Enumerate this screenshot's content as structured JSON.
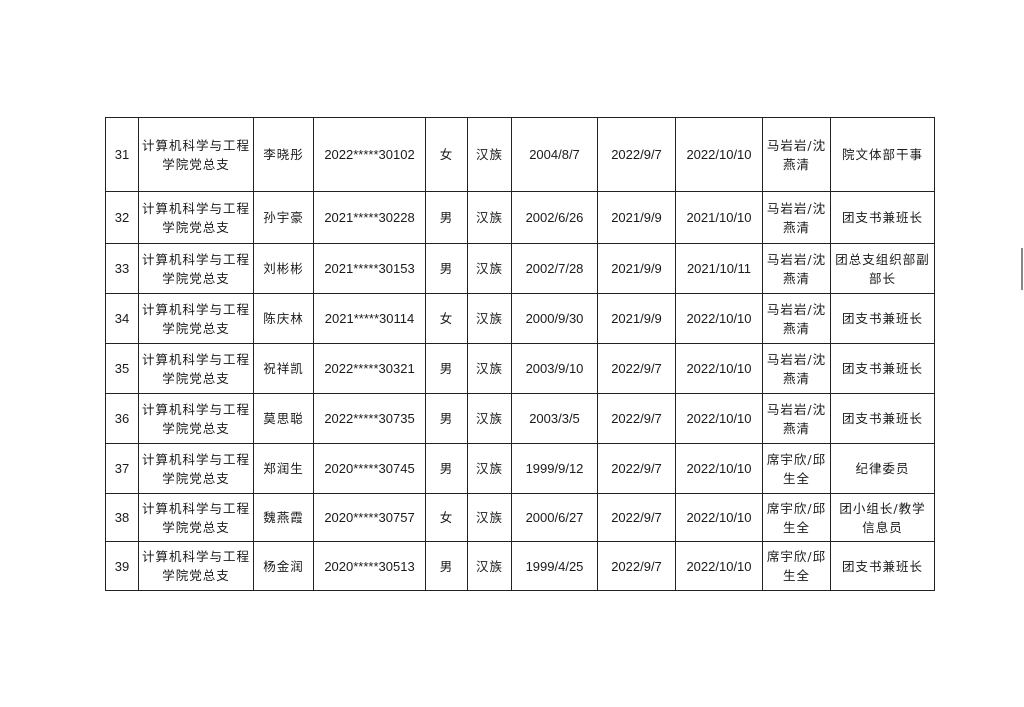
{
  "rows": [
    {
      "no": "31",
      "unit": "计算机科学与工程学院党总支",
      "name": "李晓彤",
      "id": "2022*****30102",
      "gender": "女",
      "ethnicity": "汉族",
      "birth": "2004/8/7",
      "date1": "2022/9/7",
      "date2": "2022/10/10",
      "contacts": "马岩岩/沈燕清",
      "position": "院文体部干事"
    },
    {
      "no": "32",
      "unit": "计算机科学与工程学院党总支",
      "name": "孙宇豪",
      "id": "2021*****30228",
      "gender": "男",
      "ethnicity": "汉族",
      "birth": "2002/6/26",
      "date1": "2021/9/9",
      "date2": "2021/10/10",
      "contacts": "马岩岩/沈燕清",
      "position": "团支书兼班长"
    },
    {
      "no": "33",
      "unit": "计算机科学与工程学院党总支",
      "name": "刘彬彬",
      "id": "2021*****30153",
      "gender": "男",
      "ethnicity": "汉族",
      "birth": "2002/7/28",
      "date1": "2021/9/9",
      "date2": "2021/10/11",
      "contacts": "马岩岩/沈燕清",
      "position": "团总支组织部副部长"
    },
    {
      "no": "34",
      "unit": "计算机科学与工程学院党总支",
      "name": "陈庆林",
      "id": "2021*****30114",
      "gender": "女",
      "ethnicity": "汉族",
      "birth": "2000/9/30",
      "date1": "2021/9/9",
      "date2": "2022/10/10",
      "contacts": "马岩岩/沈燕清",
      "position": "团支书兼班长"
    },
    {
      "no": "35",
      "unit": "计算机科学与工程学院党总支",
      "name": "祝祥凯",
      "id": "2022*****30321",
      "gender": "男",
      "ethnicity": "汉族",
      "birth": "2003/9/10",
      "date1": "2022/9/7",
      "date2": "2022/10/10",
      "contacts": "马岩岩/沈燕清",
      "position": "团支书兼班长"
    },
    {
      "no": "36",
      "unit": "计算机科学与工程学院党总支",
      "name": "莫思聪",
      "id": "2022*****30735",
      "gender": "男",
      "ethnicity": "汉族",
      "birth": "2003/3/5",
      "date1": "2022/9/7",
      "date2": "2022/10/10",
      "contacts": "马岩岩/沈燕清",
      "position": "团支书兼班长"
    },
    {
      "no": "37",
      "unit": "计算机科学与工程学院党总支",
      "name": "郑润生",
      "id": "2020*****30745",
      "gender": "男",
      "ethnicity": "汉族",
      "birth": "1999/9/12",
      "date1": "2022/9/7",
      "date2": "2022/10/10",
      "contacts": "席宇欣/邱生全",
      "position": "纪律委员"
    },
    {
      "no": "38",
      "unit": "计算机科学与工程学院党总支",
      "name": "魏燕霞",
      "id": "2020*****30757",
      "gender": "女",
      "ethnicity": "汉族",
      "birth": "2000/6/27",
      "date1": "2022/9/7",
      "date2": "2022/10/10",
      "contacts": "席宇欣/邱生全",
      "position": "团小组长/教学信息员"
    },
    {
      "no": "39",
      "unit": "计算机科学与工程学院党总支",
      "name": "杨金润",
      "id": "2020*****30513",
      "gender": "男",
      "ethnicity": "汉族",
      "birth": "1999/4/25",
      "date1": "2022/9/7",
      "date2": "2022/10/10",
      "contacts": "席宇欣/邱生全",
      "position": "团支书兼班长"
    }
  ]
}
